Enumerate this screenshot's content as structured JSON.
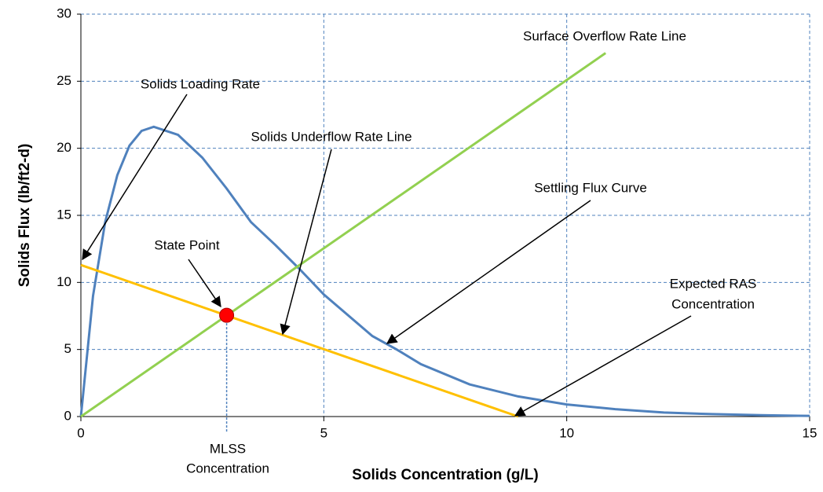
{
  "chart_data": {
    "type": "line",
    "x_label": "Solids Concentration (g/L)",
    "y_label": "Solids Flux (lb/ft2-d)",
    "xlim": [
      0,
      15
    ],
    "ylim": [
      0,
      30
    ],
    "xticks": [
      0,
      5,
      10,
      15
    ],
    "yticks": [
      0,
      5,
      10,
      15,
      20,
      25,
      30
    ],
    "grid": true,
    "series": [
      {
        "name": "Settling Flux Curve",
        "color": "#4f81bd",
        "x": [
          0,
          0.25,
          0.5,
          0.75,
          1,
          1.25,
          1.5,
          2,
          2.5,
          3,
          3.5,
          4,
          4.5,
          5,
          6,
          6.5,
          7,
          8,
          9,
          10,
          11,
          12,
          13,
          14,
          15
        ],
        "values": [
          0,
          9,
          14.5,
          18,
          20.2,
          21.3,
          21.6,
          21.0,
          19.3,
          17.0,
          14.5,
          12.8,
          11.0,
          9.1,
          6.0,
          5.0,
          3.9,
          2.4,
          1.5,
          0.9,
          0.55,
          0.3,
          0.18,
          0.1,
          0.05
        ]
      },
      {
        "name": "Surface Overflow Rate Line",
        "color": "#92d050",
        "x": [
          0,
          10.8
        ],
        "values": [
          0,
          27.1
        ]
      },
      {
        "name": "Solids Underflow Rate Line",
        "color": "#ffc000",
        "x": [
          0,
          9
        ],
        "values": [
          11.3,
          0
        ]
      }
    ],
    "state_point": {
      "name": "State Point",
      "x": 3,
      "y": 7.55,
      "color": "#ff0000"
    },
    "annotations": {
      "surface": "Surface Overflow Rate Line",
      "loading": "Solids Loading Rate",
      "underflow": "Solids Underflow Rate Line",
      "settling": "Settling Flux Curve",
      "state": "State Point",
      "ras": [
        "Expected RAS",
        "Concentration"
      ],
      "mlss": [
        "MLSS",
        "Concentration"
      ]
    }
  }
}
